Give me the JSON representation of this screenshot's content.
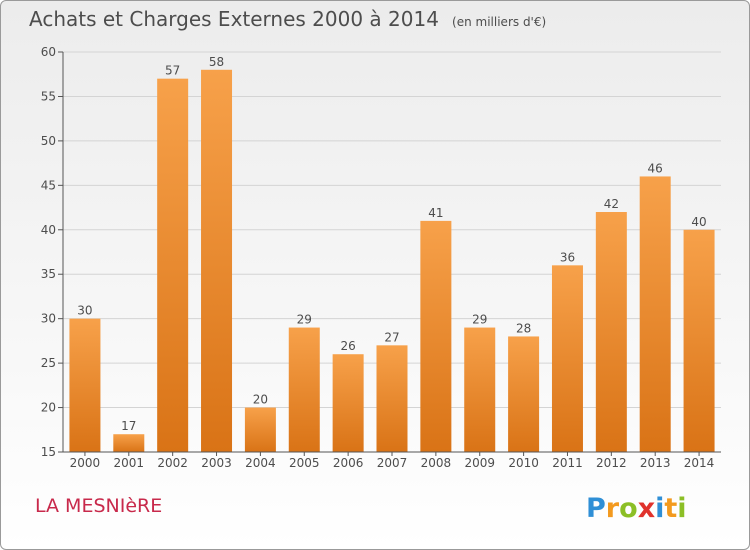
{
  "header": {
    "title": "Achats et Charges Externes 2000 à 2014",
    "unit": "(en milliers d'€)"
  },
  "footer": {
    "commune": "LA MESNIèRE",
    "logo_text": "Proxiti",
    "logo_letters": [
      {
        "ch": "P",
        "color": "#2f8fd6"
      },
      {
        "ch": "r",
        "color": "#f39a1f"
      },
      {
        "ch": "o",
        "color": "#8cbf26"
      },
      {
        "ch": "x",
        "color": "#e0322c"
      },
      {
        "ch": "i",
        "color": "#2f8fd6"
      },
      {
        "ch": "t",
        "color": "#f39a1f"
      },
      {
        "ch": "i",
        "color": "#8cbf26"
      }
    ]
  },
  "colors": {
    "bar_light": "#f7a14a",
    "bar_dark": "#d97316",
    "text": "#4d4d4d",
    "grid": "#d4d4d4",
    "axis": "#555555"
  },
  "chart_data": {
    "type": "bar",
    "title": "Achats et Charges Externes 2000 à 2014",
    "subtitle": "(en milliers d'€)",
    "xlabel": "",
    "ylabel": "",
    "categories": [
      "2000",
      "2001",
      "2002",
      "2003",
      "2004",
      "2005",
      "2006",
      "2007",
      "2008",
      "2009",
      "2010",
      "2011",
      "2012",
      "2013",
      "2014"
    ],
    "values": [
      30,
      17,
      57,
      58,
      20,
      29,
      26,
      27,
      41,
      29,
      28,
      36,
      42,
      46,
      40
    ],
    "ylim": [
      15,
      60
    ],
    "yticks": [
      15,
      20,
      25,
      30,
      35,
      40,
      45,
      50,
      55,
      60
    ],
    "grid": true,
    "legend": "none"
  }
}
